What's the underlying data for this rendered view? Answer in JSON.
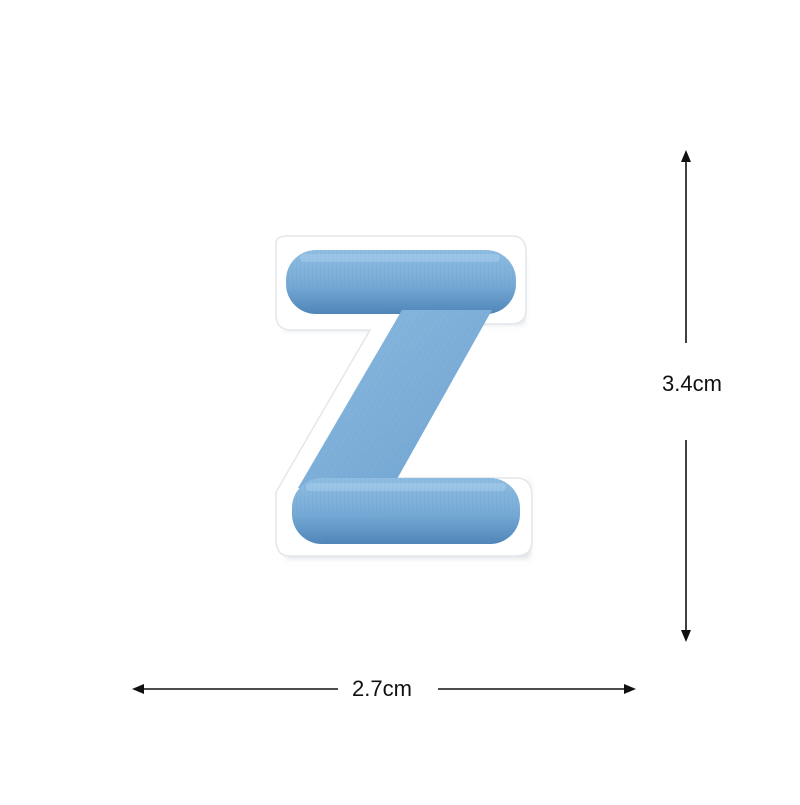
{
  "product": {
    "letter": "Z",
    "thread_color": "#7fb1d8",
    "thread_shadow": "#4f86b8",
    "border_color": "#ffffff",
    "shadow_color": "#cfd6de"
  },
  "dimensions": {
    "height_label": "3.4cm",
    "width_label": "2.7cm",
    "line_color": "#111111"
  }
}
